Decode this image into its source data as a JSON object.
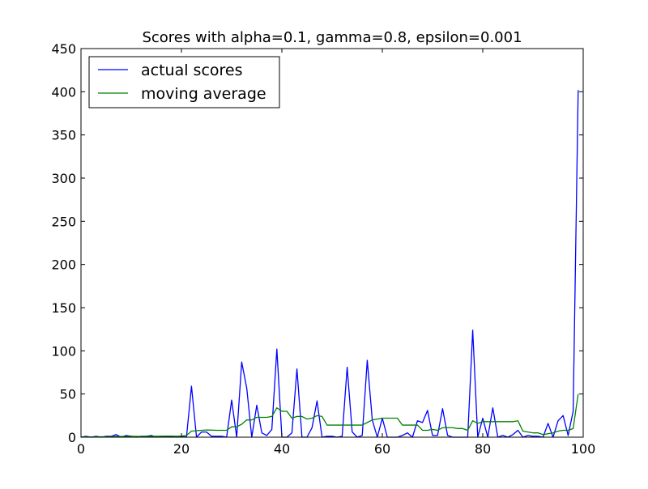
{
  "chart_data": {
    "type": "line",
    "title": "Scores with alpha=0.1, gamma=0.8, epsilon=0.001",
    "xlabel": "",
    "ylabel": "",
    "xlim": [
      0,
      100
    ],
    "ylim": [
      0,
      450
    ],
    "xticks": [
      0,
      20,
      40,
      60,
      80,
      100
    ],
    "yticks": [
      0,
      50,
      100,
      150,
      200,
      250,
      300,
      350,
      400,
      450
    ],
    "grid": false,
    "legend_position": "top-left",
    "series": [
      {
        "name": "actual scores",
        "color": "#0000ff",
        "x": [
          0,
          1,
          2,
          3,
          4,
          5,
          6,
          7,
          8,
          9,
          10,
          11,
          12,
          13,
          14,
          15,
          16,
          17,
          18,
          19,
          20,
          21,
          22,
          23,
          24,
          25,
          26,
          27,
          28,
          29,
          30,
          31,
          32,
          33,
          34,
          35,
          36,
          37,
          38,
          39,
          40,
          41,
          42,
          43,
          44,
          45,
          46,
          47,
          48,
          49,
          50,
          51,
          52,
          53,
          54,
          55,
          56,
          57,
          58,
          59,
          60,
          61,
          62,
          63,
          64,
          65,
          66,
          67,
          68,
          69,
          70,
          71,
          72,
          73,
          74,
          75,
          76,
          77,
          78,
          79,
          80,
          81,
          82,
          83,
          84,
          85,
          86,
          87,
          88,
          89,
          90,
          91,
          92,
          93,
          94,
          95,
          96,
          97,
          98,
          99
        ],
        "values": [
          0,
          1,
          0,
          1,
          0,
          1,
          1,
          3,
          0,
          2,
          1,
          0,
          1,
          1,
          2,
          0,
          1,
          1,
          1,
          0,
          1,
          0,
          59,
          0,
          6,
          6,
          1,
          1,
          1,
          0,
          43,
          0,
          87,
          57,
          0,
          37,
          5,
          2,
          9,
          102,
          0,
          0,
          5,
          79,
          0,
          0,
          11,
          42,
          0,
          1,
          1,
          0,
          1,
          81,
          6,
          0,
          2,
          89,
          20,
          0,
          22,
          0,
          0,
          0,
          2,
          5,
          0,
          19,
          17,
          31,
          2,
          2,
          33,
          2,
          0,
          0,
          0,
          0,
          124,
          0,
          22,
          0,
          34,
          0,
          2,
          0,
          3,
          8,
          0,
          2,
          1,
          1,
          0,
          16,
          0,
          19,
          25,
          2,
          30,
          402
        ]
      },
      {
        "name": "moving average",
        "color": "#008000",
        "x": [
          0,
          1,
          2,
          3,
          4,
          5,
          6,
          7,
          8,
          9,
          10,
          11,
          12,
          13,
          14,
          15,
          16,
          17,
          18,
          19,
          20,
          21,
          22,
          23,
          24,
          25,
          26,
          27,
          28,
          29,
          30,
          31,
          32,
          33,
          34,
          35,
          36,
          37,
          38,
          39,
          40,
          41,
          42,
          43,
          44,
          45,
          46,
          47,
          48,
          49,
          50,
          51,
          52,
          53,
          54,
          55,
          56,
          57,
          58,
          59,
          60,
          61,
          62,
          63,
          64,
          65,
          66,
          67,
          68,
          69,
          70,
          71,
          72,
          73,
          74,
          75,
          76,
          77,
          78,
          79,
          80,
          81,
          82,
          83,
          84,
          85,
          86,
          87,
          88,
          89,
          90,
          91,
          92,
          93,
          94,
          95,
          96,
          97,
          98,
          99
        ],
        "values": [
          0,
          0.5,
          0.3,
          0.5,
          0.4,
          0.5,
          0.6,
          0.9,
          0.8,
          1.0,
          1.0,
          0.9,
          0.9,
          1.0,
          1.0,
          1.0,
          1.2,
          1.3,
          1.3,
          1.1,
          1.3,
          2.0,
          7,
          7.5,
          8,
          8.3,
          8.2,
          8,
          8,
          8,
          12,
          12,
          15,
          20,
          20,
          23,
          23,
          23,
          24,
          34,
          30,
          30,
          22,
          24,
          24,
          21,
          22,
          25,
          24,
          14,
          14,
          14,
          14,
          14,
          14,
          14,
          14,
          17,
          20,
          21,
          22,
          22,
          22,
          22,
          14,
          14,
          14,
          14,
          8,
          8,
          9,
          8,
          11,
          11,
          11,
          10,
          10,
          8,
          19,
          16,
          18,
          18,
          18,
          18,
          18,
          18,
          18,
          19,
          7,
          6,
          5,
          5,
          3,
          4,
          5,
          7,
          8,
          8,
          10,
          50
        ]
      }
    ]
  }
}
